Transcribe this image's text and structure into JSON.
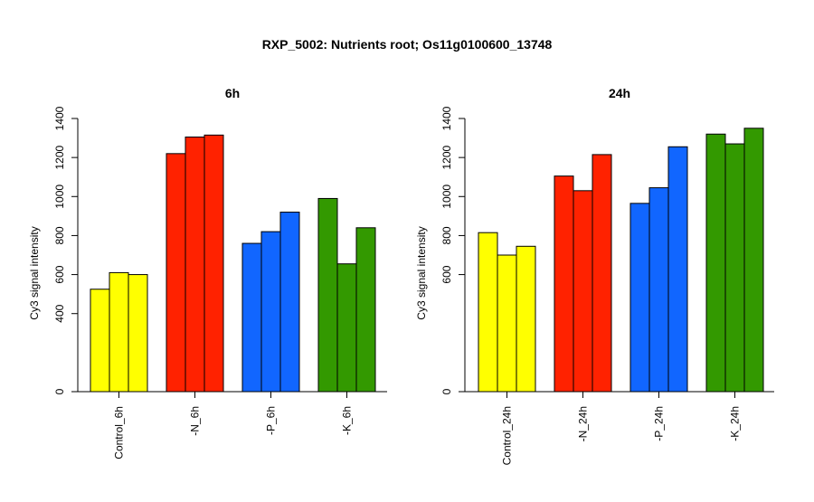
{
  "title": "RXP_5002: Nutrients root; Os11g0100600_13748",
  "chart_data": [
    {
      "type": "bar",
      "title": "6h",
      "ylabel": "Cy3 signal intensity",
      "ylim": [
        0,
        1400
      ],
      "yticks": [
        0,
        400,
        600,
        800,
        1000,
        1200,
        1400
      ],
      "groups": [
        {
          "label": "Control_6h",
          "color": "#FFFF00",
          "values": [
            525,
            610,
            600
          ]
        },
        {
          "label": "-N_6h",
          "color": "#FF2200",
          "values": [
            1220,
            1305,
            1315
          ]
        },
        {
          "label": "-P_6h",
          "color": "#1166FF",
          "values": [
            760,
            820,
            920
          ]
        },
        {
          "label": "-K_6h",
          "color": "#339900",
          "values": [
            990,
            655,
            840
          ]
        }
      ]
    },
    {
      "type": "bar",
      "title": "24h",
      "ylabel": "Cy3 signal intensity",
      "ylim": [
        0,
        1400
      ],
      "yticks": [
        0,
        600,
        800,
        1000,
        1200,
        1400
      ],
      "groups": [
        {
          "label": "Control_24h",
          "color": "#FFFF00",
          "values": [
            815,
            700,
            745
          ]
        },
        {
          "label": "-N_24h",
          "color": "#FF2200",
          "values": [
            1105,
            1030,
            1215
          ]
        },
        {
          "label": "-P_24h",
          "color": "#1166FF",
          "values": [
            965,
            1045,
            1255
          ]
        },
        {
          "label": "-K_24h",
          "color": "#339900",
          "values": [
            1320,
            1270,
            1350
          ]
        }
      ]
    }
  ]
}
